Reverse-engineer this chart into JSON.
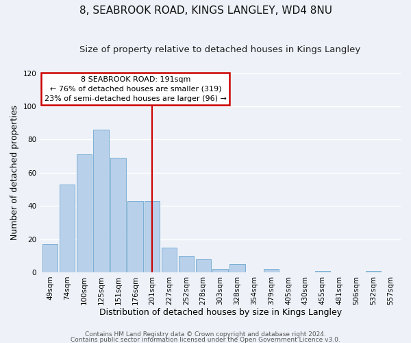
{
  "title": "8, SEABROOK ROAD, KINGS LANGLEY, WD4 8NU",
  "subtitle": "Size of property relative to detached houses in Kings Langley",
  "xlabel": "Distribution of detached houses by size in Kings Langley",
  "ylabel": "Number of detached properties",
  "bar_labels": [
    "49sqm",
    "74sqm",
    "100sqm",
    "125sqm",
    "151sqm",
    "176sqm",
    "201sqm",
    "227sqm",
    "252sqm",
    "278sqm",
    "303sqm",
    "328sqm",
    "354sqm",
    "379sqm",
    "405sqm",
    "430sqm",
    "455sqm",
    "481sqm",
    "506sqm",
    "532sqm",
    "557sqm"
  ],
  "bar_values": [
    17,
    53,
    71,
    86,
    69,
    43,
    43,
    15,
    10,
    8,
    2,
    5,
    0,
    2,
    0,
    0,
    1,
    0,
    0,
    1,
    0
  ],
  "bar_color": "#b8d0ea",
  "bar_edge_color": "#7aafd4",
  "annotation_text_line1": "8 SEABROOK ROAD: 191sqm",
  "annotation_text_line2": "← 76% of detached houses are smaller (319)",
  "annotation_text_line3": "23% of semi-detached houses are larger (96) →",
  "annotation_box_color": "#ffffff",
  "annotation_box_edge_color": "#cc0000",
  "vline_color": "#cc0000",
  "ylim": [
    0,
    120
  ],
  "yticks": [
    0,
    20,
    40,
    60,
    80,
    100,
    120
  ],
  "footer_line1": "Contains HM Land Registry data © Crown copyright and database right 2024.",
  "footer_line2": "Contains public sector information licensed under the Open Government Licence v3.0.",
  "background_color": "#eef2f8",
  "grid_color": "#ffffff",
  "title_fontsize": 11,
  "subtitle_fontsize": 9.5,
  "axis_label_fontsize": 9,
  "tick_fontsize": 7.5,
  "annotation_fontsize": 8,
  "footer_fontsize": 6.5,
  "vline_x_index": 6
}
